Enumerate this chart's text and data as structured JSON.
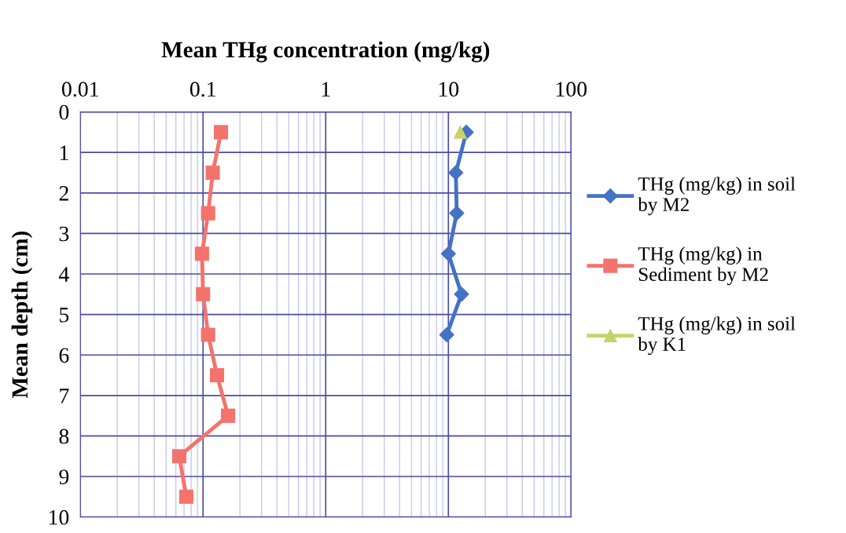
{
  "chart_data": {
    "type": "line",
    "xlabel": "Mean THg concentration (mg/kg)",
    "ylabel": "Mean depth (cm)",
    "log": "x",
    "grid": true,
    "legend": "right",
    "xlim": [
      0.01,
      100
    ],
    "xticks": [
      0.01,
      0.1,
      1,
      10,
      100
    ],
    "ylim": [
      10,
      0
    ],
    "yticks": [
      0,
      1,
      2,
      3,
      4,
      5,
      6,
      7,
      8,
      9,
      10
    ],
    "series": [
      {
        "name": "THg (mg/kg) in soil by M2",
        "color": "#4472c4",
        "marker": "diamond",
        "x": [
          14,
          11.5,
          11.7,
          10,
          12.8,
          9.7
        ],
        "values": [
          0.5,
          1.5,
          2.5,
          3.5,
          4.5,
          5.5
        ]
      },
      {
        "name": "THg (mg/kg) in Sediment by M2",
        "color": "#f4736c",
        "marker": "square",
        "x": [
          0.14,
          0.12,
          0.11,
          0.098,
          0.1,
          0.11,
          0.13,
          0.16,
          0.064,
          0.073
        ],
        "values": [
          0.5,
          1.5,
          2.5,
          3.5,
          4.5,
          5.5,
          6.5,
          7.5,
          8.5,
          9.5
        ]
      },
      {
        "name": "THg (mg/kg) in soil by K1",
        "color": "#c5d36a",
        "marker": "triangle",
        "x": [
          12.5
        ],
        "values": [
          0.5
        ]
      }
    ]
  }
}
